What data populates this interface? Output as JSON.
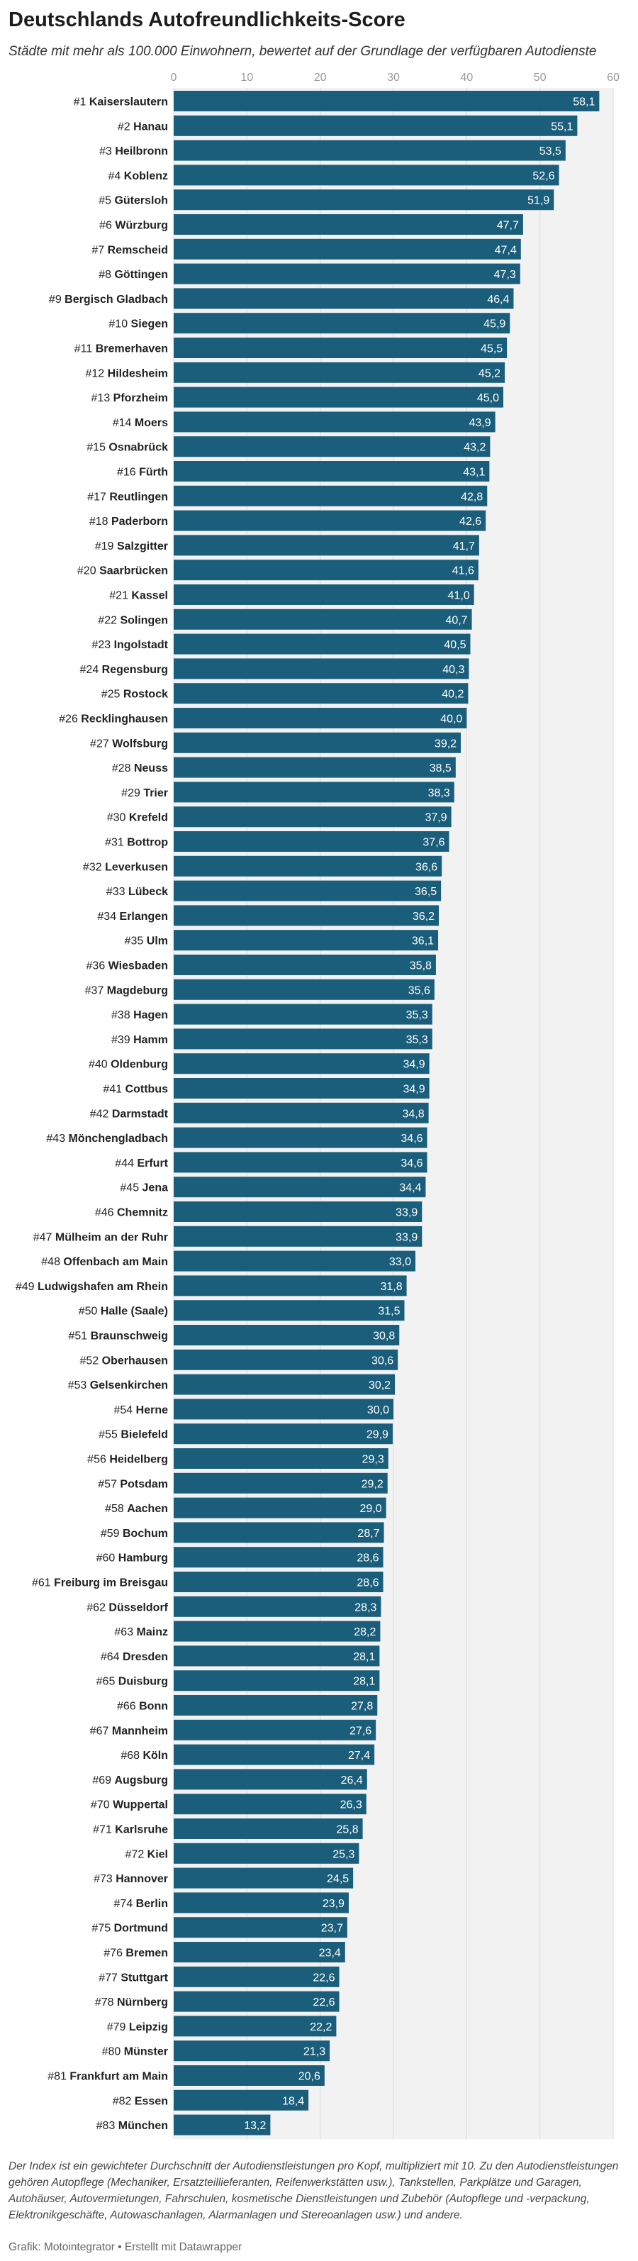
{
  "header": {
    "title": "Deutschlands Autofreundlichkeits-Score",
    "subtitle": "Städte mit mehr als 100.000 Einwohnern, bewertet auf der Grundlage der verfügbaren Autodienste"
  },
  "footer": {
    "note": "Der Index ist ein gewichteter Durchschnitt der Autodienstleistungen pro Kopf, multipliziert mit 10. Zu den Autodienstleistungen gehören Autopflege (Mechaniker, Ersatzteillieferanten, Reifenwerkstätten usw.), Tankstellen, Parkplätze und Garagen, Autohäuser, Autovermietungen, Fahrschulen, kosmetische Dienstleistungen und Zubehör (Autopflege und -verpackung, Elektronikgeschäfte, Autowaschanlagen, Alarmanlagen und Stereoanlagen usw.) und andere.",
    "source": "Grafik: Motointegrator • Erstellt mit Datawrapper"
  },
  "chart_data": {
    "type": "bar",
    "orientation": "horizontal",
    "title": "Deutschlands Autofreundlichkeits-Score",
    "subtitle": "Städte mit mehr als 100.000 Einwohnern, bewertet auf der Grundlage der verfügbaren Autodienste",
    "xlim": [
      0,
      60
    ],
    "xticks": [
      0,
      10,
      20,
      30,
      40,
      50,
      60
    ],
    "grid": true,
    "bar_color": "#1b5e7b",
    "background_color": "#f2f2f2",
    "categories": [
      {
        "rank": "#1",
        "city": "Kaiserslautern"
      },
      {
        "rank": "#2",
        "city": "Hanau"
      },
      {
        "rank": "#3",
        "city": "Heilbronn"
      },
      {
        "rank": "#4",
        "city": "Koblenz"
      },
      {
        "rank": "#5",
        "city": "Gütersloh"
      },
      {
        "rank": "#6",
        "city": "Würzburg"
      },
      {
        "rank": "#7",
        "city": "Remscheid"
      },
      {
        "rank": "#8",
        "city": "Göttingen"
      },
      {
        "rank": "#9",
        "city": "Bergisch Gladbach"
      },
      {
        "rank": "#10",
        "city": "Siegen"
      },
      {
        "rank": "#11",
        "city": "Bremerhaven"
      },
      {
        "rank": "#12",
        "city": "Hildesheim"
      },
      {
        "rank": "#13",
        "city": "Pforzheim"
      },
      {
        "rank": "#14",
        "city": "Moers"
      },
      {
        "rank": "#15",
        "city": "Osnabrück"
      },
      {
        "rank": "#16",
        "city": "Fürth"
      },
      {
        "rank": "#17",
        "city": "Reutlingen"
      },
      {
        "rank": "#18",
        "city": "Paderborn"
      },
      {
        "rank": "#19",
        "city": "Salzgitter"
      },
      {
        "rank": "#20",
        "city": "Saarbrücken"
      },
      {
        "rank": "#21",
        "city": "Kassel"
      },
      {
        "rank": "#22",
        "city": "Solingen"
      },
      {
        "rank": "#23",
        "city": "Ingolstadt"
      },
      {
        "rank": "#24",
        "city": "Regensburg"
      },
      {
        "rank": "#25",
        "city": "Rostock"
      },
      {
        "rank": "#26",
        "city": "Recklinghausen"
      },
      {
        "rank": "#27",
        "city": "Wolfsburg"
      },
      {
        "rank": "#28",
        "city": "Neuss"
      },
      {
        "rank": "#29",
        "city": "Trier"
      },
      {
        "rank": "#30",
        "city": "Krefeld"
      },
      {
        "rank": "#31",
        "city": "Bottrop"
      },
      {
        "rank": "#32",
        "city": "Leverkusen"
      },
      {
        "rank": "#33",
        "city": "Lübeck"
      },
      {
        "rank": "#34",
        "city": "Erlangen"
      },
      {
        "rank": "#35",
        "city": "Ulm"
      },
      {
        "rank": "#36",
        "city": "Wiesbaden"
      },
      {
        "rank": "#37",
        "city": "Magdeburg"
      },
      {
        "rank": "#38",
        "city": "Hagen"
      },
      {
        "rank": "#39",
        "city": "Hamm"
      },
      {
        "rank": "#40",
        "city": "Oldenburg"
      },
      {
        "rank": "#41",
        "city": "Cottbus"
      },
      {
        "rank": "#42",
        "city": "Darmstadt"
      },
      {
        "rank": "#43",
        "city": "Mönchengladbach"
      },
      {
        "rank": "#44",
        "city": "Erfurt"
      },
      {
        "rank": "#45",
        "city": "Jena"
      },
      {
        "rank": "#46",
        "city": "Chemnitz"
      },
      {
        "rank": "#47",
        "city": "Mülheim an der Ruhr"
      },
      {
        "rank": "#48",
        "city": "Offenbach am Main"
      },
      {
        "rank": "#49",
        "city": "Ludwigshafen am Rhein"
      },
      {
        "rank": "#50",
        "city": "Halle (Saale)"
      },
      {
        "rank": "#51",
        "city": "Braunschweig"
      },
      {
        "rank": "#52",
        "city": "Oberhausen"
      },
      {
        "rank": "#53",
        "city": "Gelsenkirchen"
      },
      {
        "rank": "#54",
        "city": "Herne"
      },
      {
        "rank": "#55",
        "city": "Bielefeld"
      },
      {
        "rank": "#56",
        "city": "Heidelberg"
      },
      {
        "rank": "#57",
        "city": "Potsdam"
      },
      {
        "rank": "#58",
        "city": "Aachen"
      },
      {
        "rank": "#59",
        "city": "Bochum"
      },
      {
        "rank": "#60",
        "city": "Hamburg"
      },
      {
        "rank": "#61",
        "city": "Freiburg im Breisgau"
      },
      {
        "rank": "#62",
        "city": "Düsseldorf"
      },
      {
        "rank": "#63",
        "city": "Mainz"
      },
      {
        "rank": "#64",
        "city": "Dresden"
      },
      {
        "rank": "#65",
        "city": "Duisburg"
      },
      {
        "rank": "#66",
        "city": "Bonn"
      },
      {
        "rank": "#67",
        "city": "Mannheim"
      },
      {
        "rank": "#68",
        "city": "Köln"
      },
      {
        "rank": "#69",
        "city": "Augsburg"
      },
      {
        "rank": "#70",
        "city": "Wuppertal"
      },
      {
        "rank": "#71",
        "city": "Karlsruhe"
      },
      {
        "rank": "#72",
        "city": "Kiel"
      },
      {
        "rank": "#73",
        "city": "Hannover"
      },
      {
        "rank": "#74",
        "city": "Berlin"
      },
      {
        "rank": "#75",
        "city": "Dortmund"
      },
      {
        "rank": "#76",
        "city": "Bremen"
      },
      {
        "rank": "#77",
        "city": "Stuttgart"
      },
      {
        "rank": "#78",
        "city": "Nürnberg"
      },
      {
        "rank": "#79",
        "city": "Leipzig"
      },
      {
        "rank": "#80",
        "city": "Münster"
      },
      {
        "rank": "#81",
        "city": "Frankfurt am Main"
      },
      {
        "rank": "#82",
        "city": "Essen"
      },
      {
        "rank": "#83",
        "city": "München"
      }
    ],
    "values": [
      58.1,
      55.1,
      53.5,
      52.6,
      51.9,
      47.7,
      47.4,
      47.3,
      46.4,
      45.9,
      45.5,
      45.2,
      45.0,
      43.9,
      43.2,
      43.1,
      42.8,
      42.6,
      41.7,
      41.6,
      41.0,
      40.7,
      40.5,
      40.3,
      40.2,
      40.0,
      39.2,
      38.5,
      38.3,
      37.9,
      37.6,
      36.6,
      36.5,
      36.2,
      36.1,
      35.8,
      35.6,
      35.3,
      35.3,
      34.9,
      34.9,
      34.8,
      34.6,
      34.6,
      34.4,
      33.9,
      33.9,
      33.0,
      31.8,
      31.5,
      30.8,
      30.6,
      30.2,
      30.0,
      29.9,
      29.3,
      29.2,
      29.0,
      28.7,
      28.6,
      28.6,
      28.3,
      28.2,
      28.1,
      28.1,
      27.8,
      27.6,
      27.4,
      26.4,
      26.3,
      25.8,
      25.3,
      24.5,
      23.9,
      23.7,
      23.4,
      22.6,
      22.6,
      22.2,
      21.3,
      20.6,
      18.4,
      13.2
    ]
  }
}
